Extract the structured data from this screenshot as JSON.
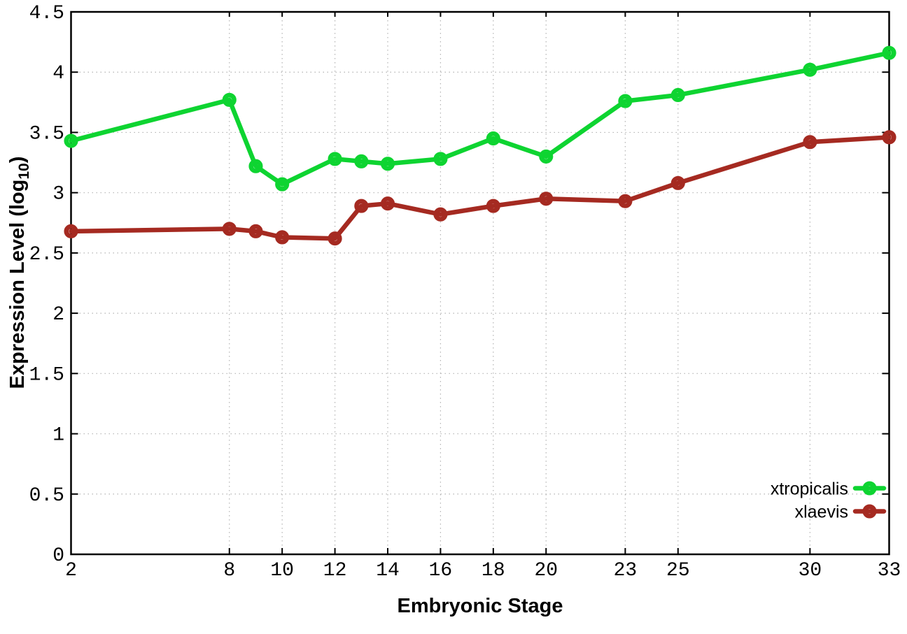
{
  "chart_data": {
    "type": "line",
    "title": "",
    "xlabel": "Embryonic Stage",
    "ylabel": "Expression Level (log10)",
    "ylabel_parts": {
      "prefix": "Expression Level (log",
      "sub": "10",
      "suffix": ")"
    },
    "x_range": [
      2,
      33
    ],
    "y_range": [
      0,
      4.5
    ],
    "x_ticks": [
      2,
      8,
      10,
      12,
      14,
      16,
      18,
      20,
      23,
      25,
      30,
      33
    ],
    "x_tick_labels": [
      "2",
      "8",
      "10",
      "12",
      "14",
      "16",
      "18",
      "20",
      "23",
      "25",
      "30",
      "33"
    ],
    "y_ticks": [
      0,
      0.5,
      1,
      1.5,
      2,
      2.5,
      3,
      3.5,
      4,
      4.5
    ],
    "y_tick_labels": [
      "0",
      "0.5",
      "1",
      "1.5",
      "2",
      "2.5",
      "3",
      "3.5",
      "4",
      "4.5"
    ],
    "grid": true,
    "legend_position": "bottom-right-inside",
    "x": [
      2,
      8,
      9,
      10,
      12,
      13,
      14,
      16,
      18,
      20,
      23,
      25,
      30,
      33
    ],
    "series": [
      {
        "name": "xtropicalis",
        "color": "#0ed431",
        "values": [
          3.43,
          3.77,
          3.22,
          3.07,
          3.28,
          3.26,
          3.24,
          3.28,
          3.45,
          3.3,
          3.76,
          3.81,
          4.02,
          4.16
        ]
      },
      {
        "name": "xlaevis",
        "color": "#a52a21",
        "values": [
          2.68,
          2.7,
          2.68,
          2.63,
          2.62,
          2.89,
          2.91,
          2.82,
          2.89,
          2.95,
          2.93,
          3.08,
          3.42,
          3.46
        ]
      }
    ],
    "style": {
      "background": "#ffffff",
      "border_color": "#000000",
      "grid_color": "#b3b3b3",
      "text_color": "#000000"
    }
  }
}
